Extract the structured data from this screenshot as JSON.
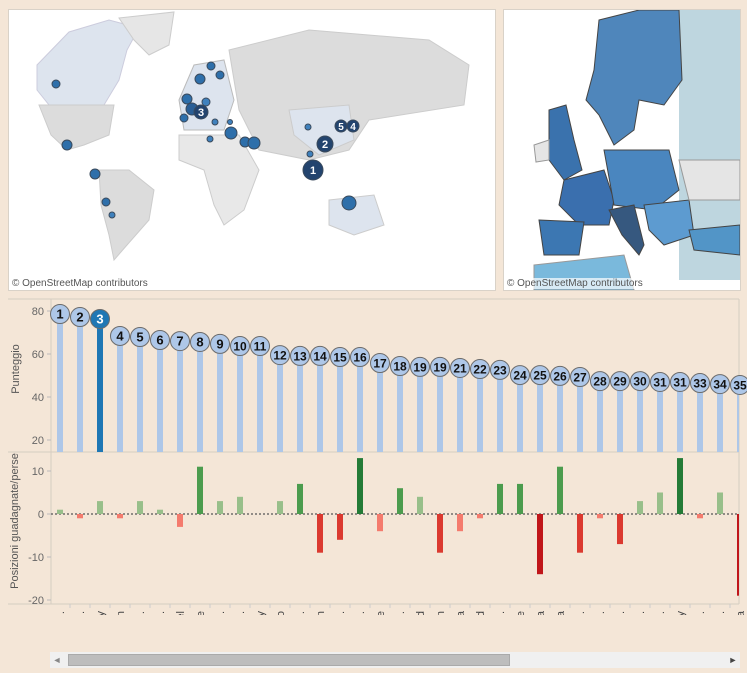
{
  "maps": {
    "attribution": "© OpenStreetMap contributors",
    "world_rank_labels": [
      "1",
      "2",
      "3",
      "4",
      "5"
    ]
  },
  "colors": {
    "lollipop": "#aec7e8",
    "lollipop_selected": "#1f77b4",
    "gain_small": "#98bf8a",
    "gain_mid": "#4c9c4e",
    "gain_large": "#247b37",
    "loss_small": "#f47b6d",
    "loss_mid": "#db3a30",
    "loss_large": "#c0161a"
  },
  "chart_data": [
    {
      "type": "bar",
      "title": "",
      "xlabel": "",
      "ylabel": "Punteggio",
      "ylim": [
        14,
        82
      ],
      "yticks": [
        "80",
        "60",
        "40",
        "20"
      ],
      "ytick_values": [
        80,
        60,
        40,
        20
      ],
      "selected_index": 2,
      "categories": [
        "Singap..",
        "Hong ..",
        "Italy",
        "Japan",
        "South ..",
        "Austra..",
        "Israel",
        "France",
        "United ..",
        "United ..",
        "Norway",
        "Mexico",
        "Ecuad..",
        "Spain",
        "Switze..",
        "Saudi ..",
        "Chile",
        "Czech ..",
        "Finland",
        "Sweden",
        "Canada",
        "Poland",
        "Germa..",
        "Greece",
        "Libya",
        "China",
        "Malays..",
        "Portug..",
        "Thaila..",
        "Roman..",
        "Slovak..",
        "Turkey",
        "Argent..",
        "Denma..",
        "Austria"
      ],
      "rank_labels": [
        "1",
        "2",
        "3",
        "4",
        "5",
        "6",
        "7",
        "8",
        "9",
        "10",
        "11",
        "12",
        "13",
        "14",
        "15",
        "16",
        "17",
        "18",
        "19",
        "19",
        "21",
        "22",
        "23",
        "24",
        "25",
        "26",
        "27",
        "28",
        "29",
        "30",
        "31",
        "31",
        "33",
        "34",
        "35"
      ],
      "values": [
        78.6,
        77.2,
        76.3,
        68.4,
        67.9,
        66.5,
        66.0,
        65.6,
        64.7,
        63.7,
        63.7,
        59.5,
        59.1,
        59.1,
        58.6,
        58.6,
        55.8,
        54.4,
        54.0,
        54.0,
        53.5,
        53.0,
        52.6,
        50.2,
        50.2,
        49.8,
        49.3,
        47.4,
        47.4,
        47.4,
        47.0,
        47.0,
        46.5,
        46.0,
        45.6
      ]
    },
    {
      "type": "bar",
      "title": "",
      "xlabel": "",
      "ylabel": "Posizioni guadagnate/perse",
      "ylim": [
        -21,
        15
      ],
      "yticks": [
        "10",
        "0",
        "-10",
        "-20"
      ],
      "ytick_values": [
        10,
        0,
        -10,
        -20
      ],
      "values": [
        1,
        -1,
        3,
        -1,
        3,
        1,
        -3,
        11,
        3,
        4,
        0,
        3,
        7,
        -9,
        -6,
        13,
        -4,
        6,
        4,
        -9,
        -4,
        -1,
        7,
        7,
        -14,
        11,
        -9,
        -1,
        -7,
        3,
        5,
        13,
        -1,
        5,
        -19
      ]
    }
  ],
  "scrollbar": {
    "left_arrow": "◄",
    "right_arrow": "►"
  }
}
